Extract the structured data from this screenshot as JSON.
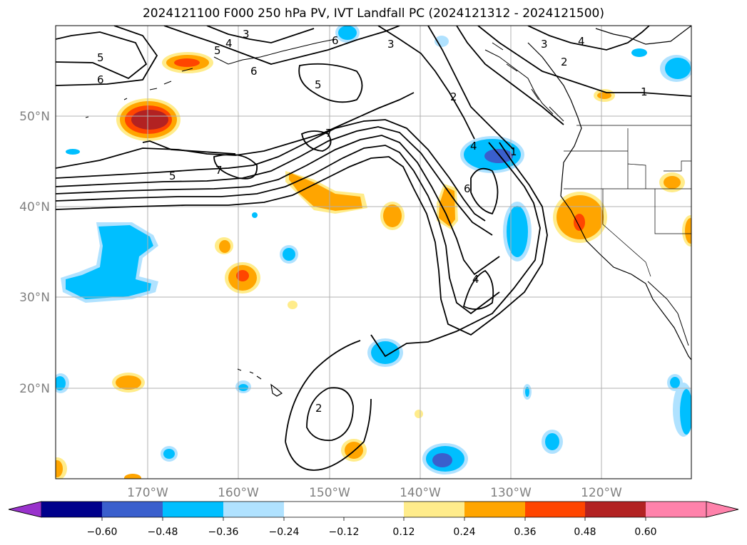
{
  "title": "2024121100 F000 250 hPa PV, IVT Landfall PC (2024121312 - 2024121500)",
  "map": {
    "lon_labels": [
      "170°W",
      "160°W",
      "150°W",
      "140°W",
      "130°W",
      "120°W"
    ],
    "lat_labels": [
      "50°N",
      "40°N",
      "30°N",
      "20°N"
    ]
  },
  "colorbar": {
    "ticks": [
      "−0.60",
      "−0.48",
      "−0.36",
      "−0.24",
      "−0.12",
      "0.12",
      "0.24",
      "0.36",
      "0.48",
      "0.60"
    ],
    "colors": {
      "under": "#9932cc",
      "n060": "#00008b",
      "n048": "#3a5fcd",
      "n036": "#00bfff",
      "n024": "#b0e2ff",
      "zero": "#ffffff",
      "p012": "#ffec8b",
      "p024": "#ffa500",
      "p036": "#ff4500",
      "p048": "#b22222",
      "over": "#ff82ab"
    }
  },
  "pv_contour_labels": [
    "3",
    "4",
    "5",
    "6",
    "6",
    "6",
    "5",
    "5",
    "7",
    "7",
    "5",
    "3",
    "2",
    "4",
    "1",
    "6",
    "4",
    "2",
    "3",
    "4",
    "2",
    "1"
  ]
}
